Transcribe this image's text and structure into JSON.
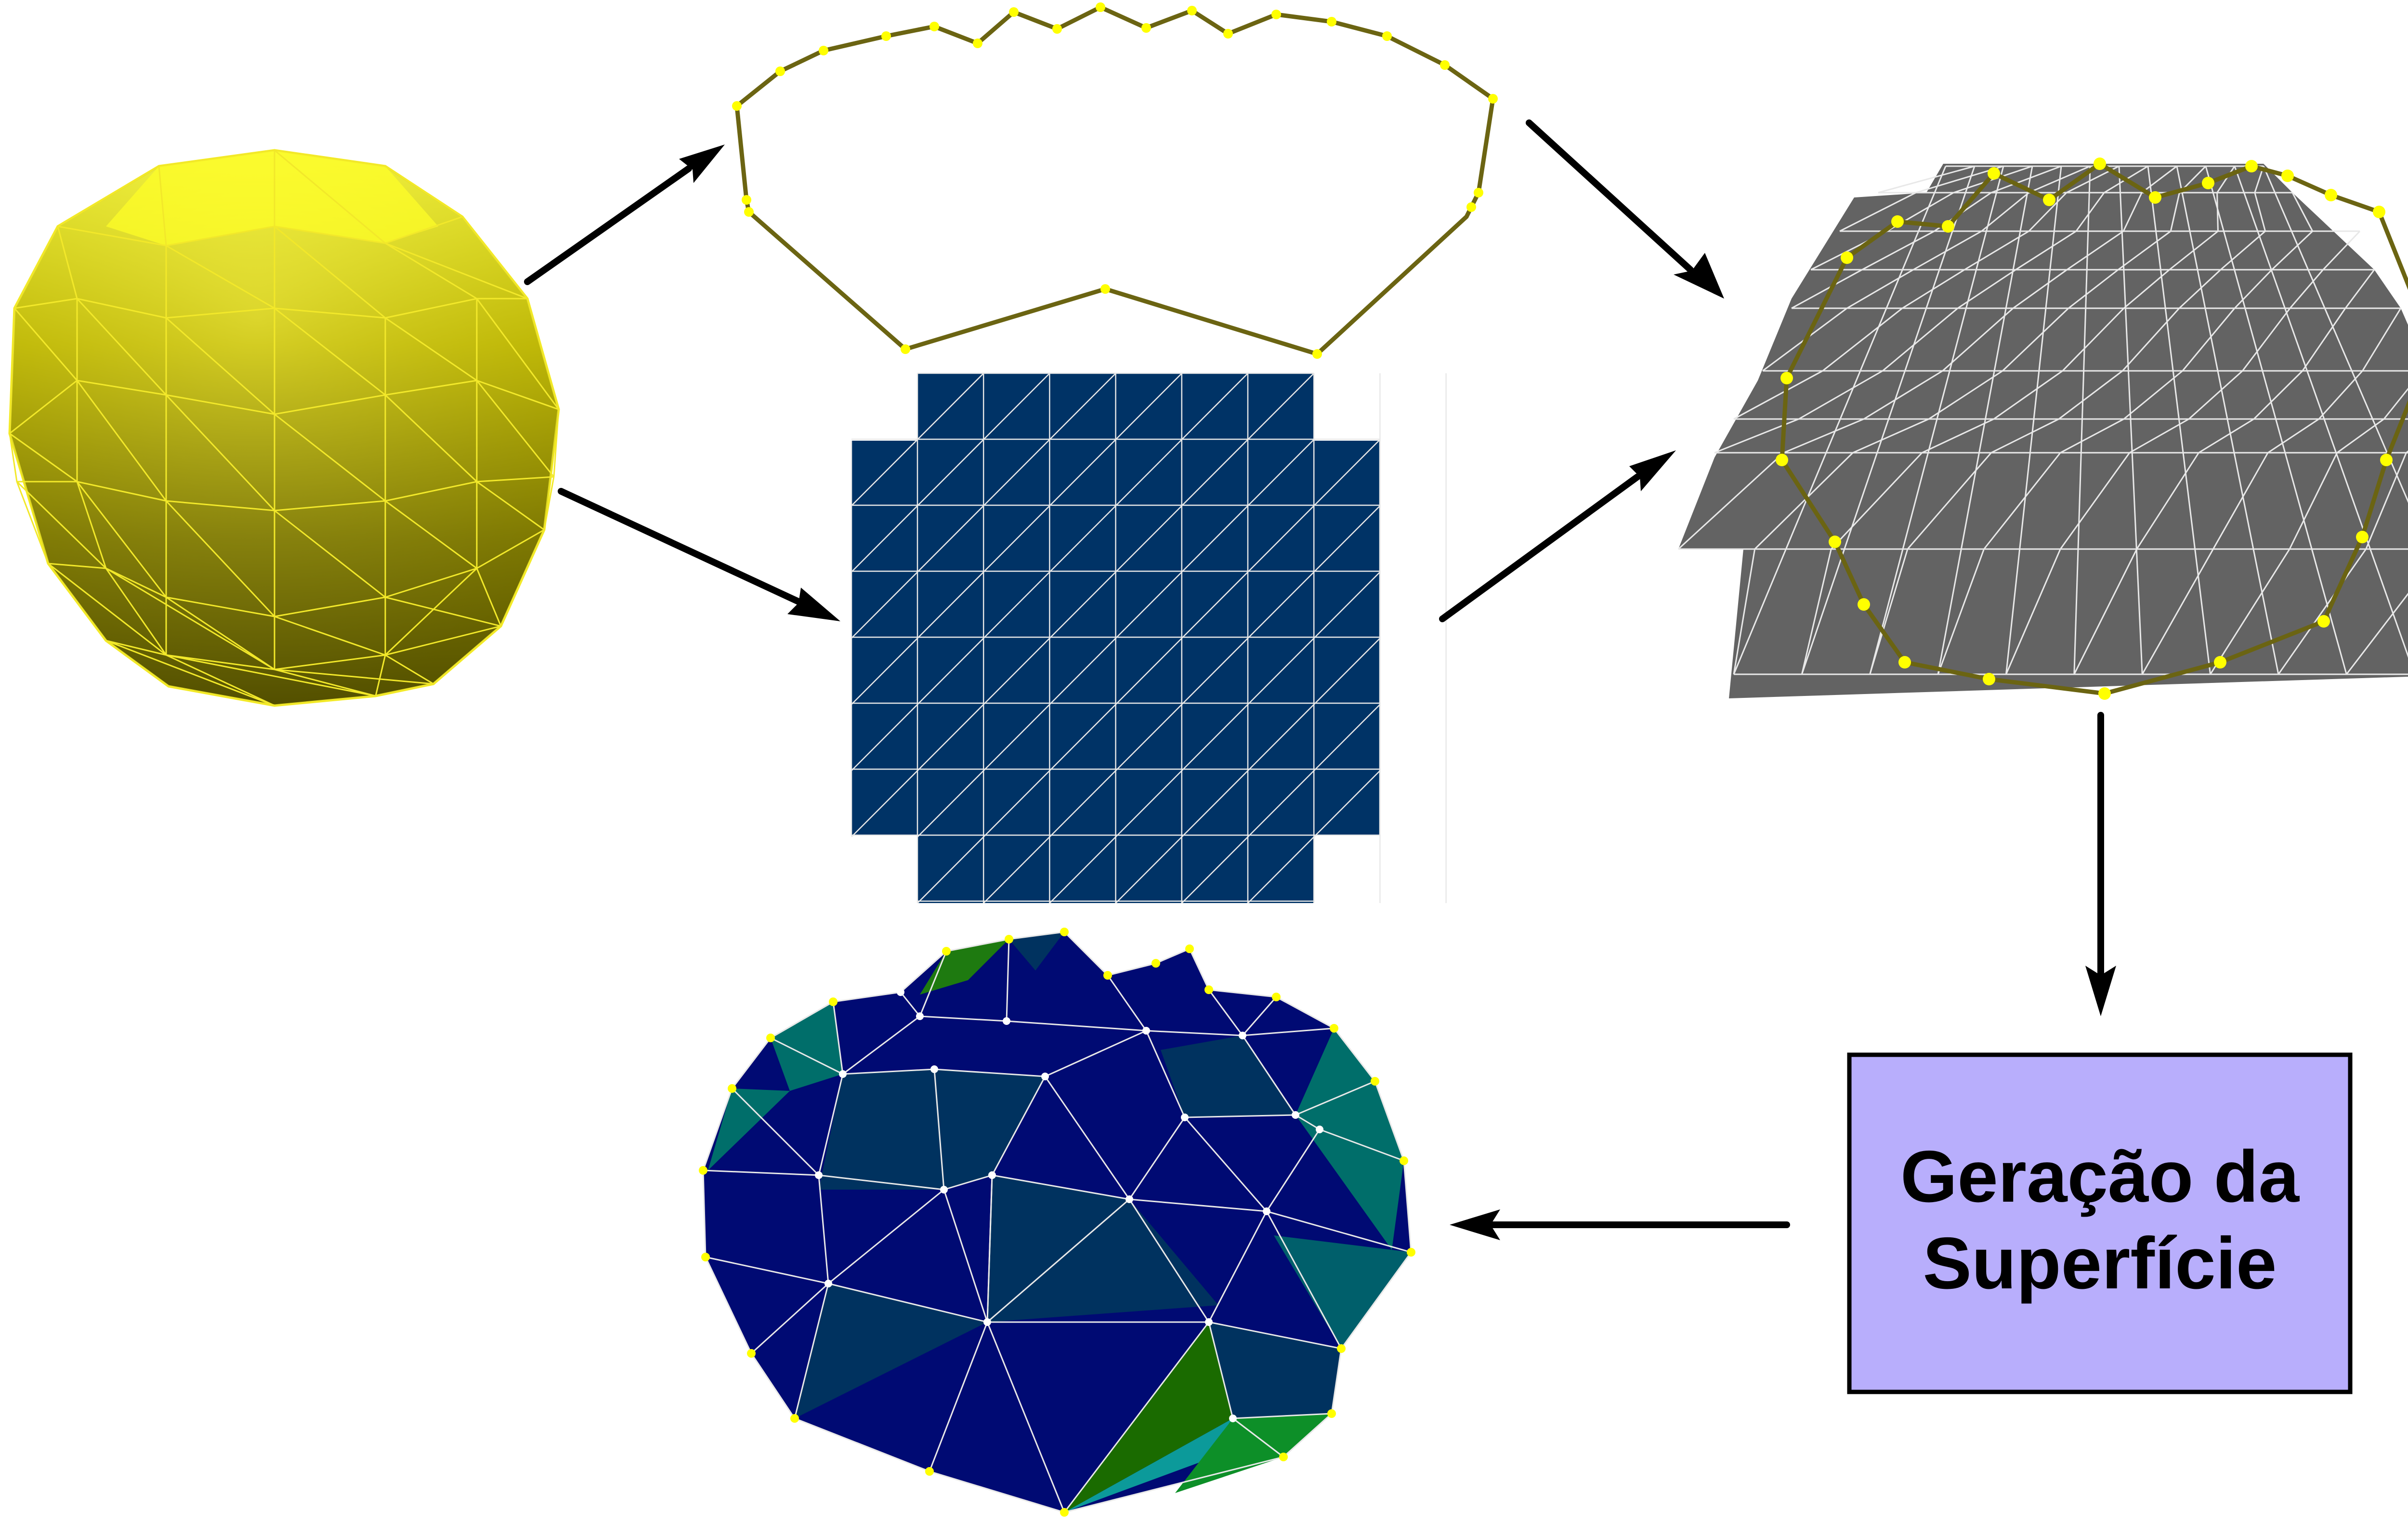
{
  "diagram": {
    "process_box": {
      "label_line1": "Geração da",
      "label_line2": "Superfície",
      "fill_color": "#b8aefc"
    },
    "colors": {
      "sphere": "#c8c000",
      "grid_mesh": "#003366",
      "plane_mesh": "#636363",
      "boundary_curve": "#6b6412",
      "control_points": "#ffff00",
      "result_dark_blue": "#000a73",
      "result_teal": "#006e6a",
      "result_green": "#1e7a10",
      "result_navy": "#00325f"
    },
    "nodes": [
      {
        "id": "sphere-mesh",
        "icon": "yellow-geodesic-sphere"
      },
      {
        "id": "boundary-curve",
        "icon": "olive-polyline-with-yellow-points"
      },
      {
        "id": "grid-mesh",
        "icon": "navy-triangulated-grid"
      },
      {
        "id": "plane-mesh",
        "icon": "gray-trapezoid-mesh-with-curve"
      },
      {
        "id": "process-box",
        "icon": "lavender-rectangle"
      },
      {
        "id": "result-surface",
        "icon": "multicolor-triangulated-surface"
      }
    ]
  }
}
